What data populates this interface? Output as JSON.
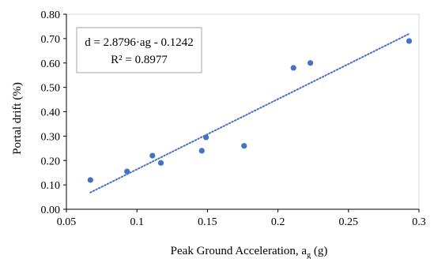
{
  "chart_data": {
    "type": "scatter",
    "title": "",
    "xlabel": "Peak Ground Acceleration, a",
    "xlabel_sub": "g",
    "xlabel_unit": " (g)",
    "ylabel": "Portal drift (%)",
    "xlim": [
      0.05,
      0.3
    ],
    "ylim": [
      0.0,
      0.8
    ],
    "x_ticks": [
      "0.05",
      "0.1",
      "0.15",
      "0.2",
      "0.25",
      "0.3"
    ],
    "y_ticks": [
      "0.00",
      "0.10",
      "0.20",
      "0.30",
      "0.40",
      "0.50",
      "0.60",
      "0.70",
      "0.80"
    ],
    "grid": false,
    "series": [
      {
        "color": "#4472C4",
        "points": [
          {
            "x": 0.067,
            "y": 0.12
          },
          {
            "x": 0.093,
            "y": 0.155
          },
          {
            "x": 0.111,
            "y": 0.22
          },
          {
            "x": 0.117,
            "y": 0.19
          },
          {
            "x": 0.146,
            "y": 0.24
          },
          {
            "x": 0.149,
            "y": 0.295
          },
          {
            "x": 0.176,
            "y": 0.26
          },
          {
            "x": 0.211,
            "y": 0.58
          },
          {
            "x": 0.223,
            "y": 0.6
          },
          {
            "x": 0.293,
            "y": 0.69
          }
        ]
      }
    ],
    "trendline": {
      "type": "linear",
      "slope": 2.8796,
      "intercept": -0.1242,
      "x_range": [
        0.067,
        0.293
      ],
      "style": "dotted",
      "color": "#4472C4"
    },
    "annotations": {
      "equation": "d = 2.8796·ag - 0.1242",
      "r_squared": "R² = 0.8977"
    }
  }
}
